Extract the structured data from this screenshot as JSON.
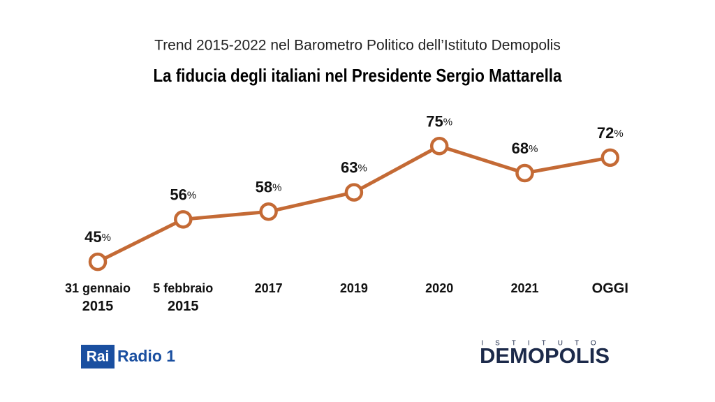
{
  "chart_data": {
    "type": "line",
    "subtitle": "Trend 2015-2022 nel Barometro Politico dell’Istituto Demopolis",
    "title": "La fiducia degli italiani nel Presidente Sergio Mattarella",
    "categories": [
      "31 gennaio 2015",
      "5 febbraio 2015",
      "2017",
      "2019",
      "2020",
      "2021",
      "OGGI"
    ],
    "values": [
      45,
      56,
      58,
      63,
      75,
      68,
      72
    ],
    "value_labels": [
      "45%",
      "56%",
      "58%",
      "63%",
      "75%",
      "68%",
      "72%"
    ],
    "color": "#c46a35"
  },
  "logos": {
    "rai": "Rai",
    "radio": "Radio 1",
    "istituto": "ISTITUTO",
    "demopolis": "DEMOPOLIS"
  }
}
